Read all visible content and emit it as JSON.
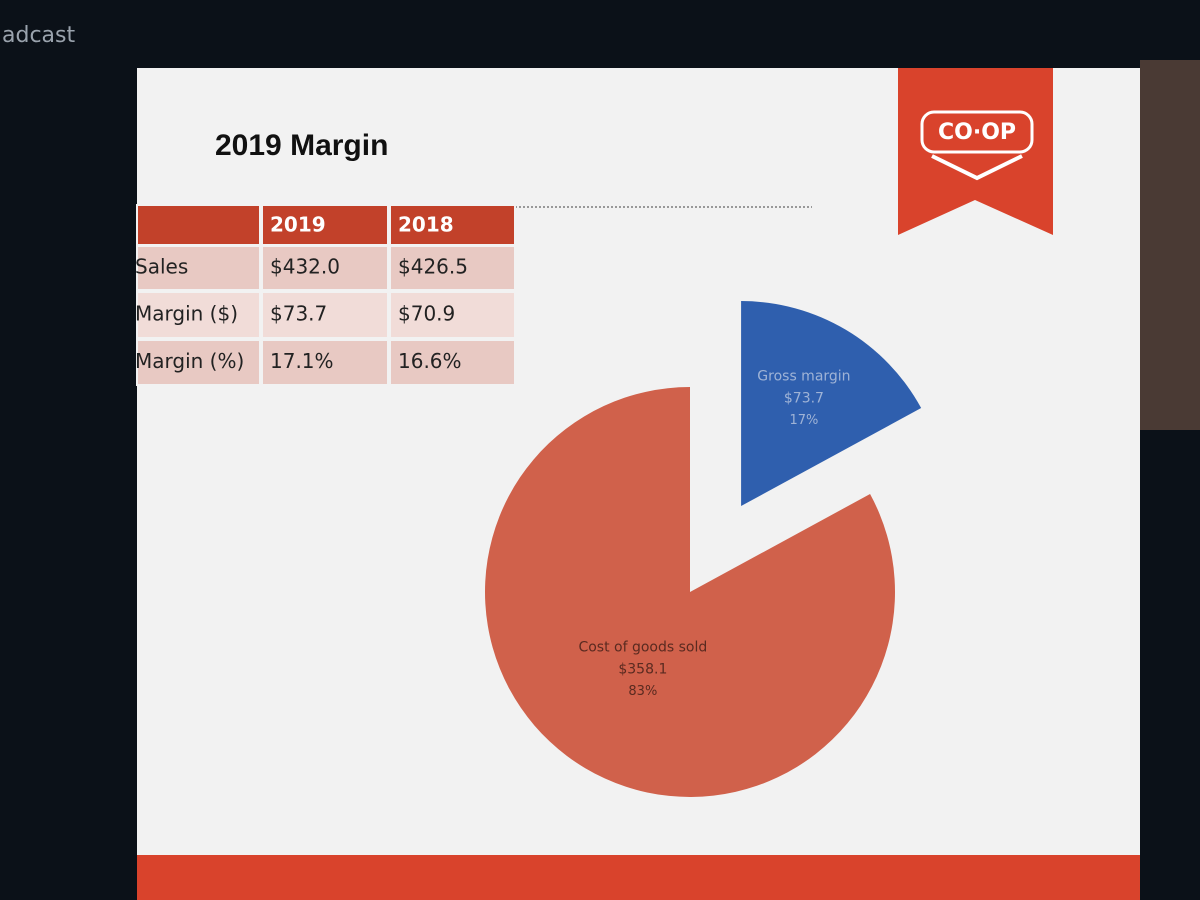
{
  "window": {
    "title_fragment": "adcast"
  },
  "slide": {
    "title": "2019 Margin",
    "logo": "CO·OP"
  },
  "table": {
    "header": [
      "",
      "2019",
      "2018"
    ],
    "rows": [
      [
        "Sales",
        "$432.0",
        "$426.5"
      ],
      [
        "Margin ($)",
        "$73.7",
        "$70.9"
      ],
      [
        "Margin (%)",
        "17.1%",
        "16.6%"
      ]
    ]
  },
  "chart_data": {
    "type": "pie",
    "categories": [
      "Gross margin",
      "Cost of goods sold"
    ],
    "values": [
      73.7,
      358.1
    ],
    "value_labels": [
      "$73.7",
      "$358.1"
    ],
    "percent_labels": [
      "17%",
      "83%"
    ],
    "colors": [
      "#2f5fae",
      "#d0614b"
    ],
    "exploded": [
      true,
      false
    ]
  }
}
